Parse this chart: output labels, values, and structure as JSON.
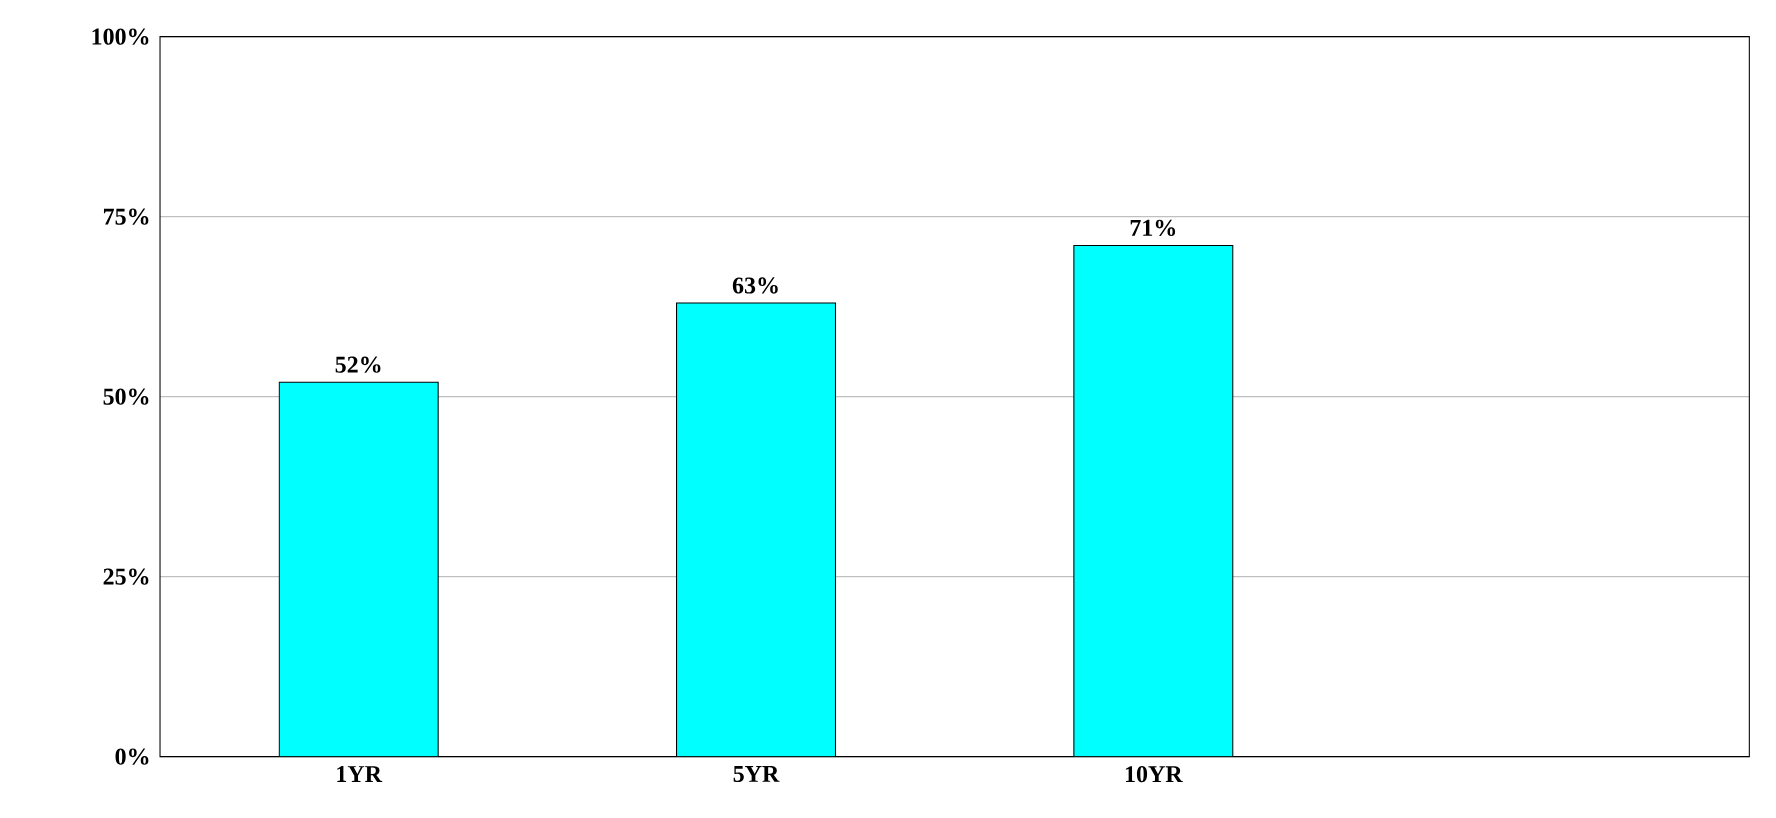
{
  "chart_data": {
    "type": "bar",
    "categories": [
      "1YR",
      "5YR",
      "10YR",
      null
    ],
    "values": [
      52,
      63,
      71,
      null
    ],
    "value_labels": [
      "52%",
      "63%",
      "71%",
      null
    ],
    "color": "#00ffff",
    "ylim": [
      0,
      100
    ],
    "yticks": [
      {
        "value": 0,
        "label": "0%"
      },
      {
        "value": 25,
        "label": "25%"
      },
      {
        "value": 50,
        "label": "50%"
      },
      {
        "value": 75,
        "label": "75%"
      },
      {
        "value": 100,
        "label": "100%"
      }
    ],
    "grid": "y"
  }
}
